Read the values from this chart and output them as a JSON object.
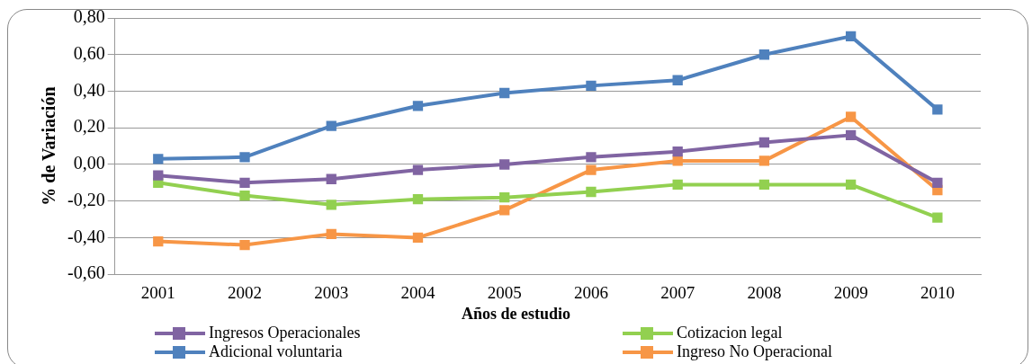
{
  "chart_data": {
    "type": "line",
    "xlabel": "Años de estudio",
    "ylabel": "% de Variación",
    "categories": [
      "2001",
      "2002",
      "2003",
      "2004",
      "2005",
      "2006",
      "2007",
      "2008",
      "2009",
      "2010"
    ],
    "series": [
      {
        "name": "Ingresos Operacionales",
        "color": "#8064a2",
        "values": [
          -0.06,
          -0.1,
          -0.08,
          -0.03,
          0.0,
          0.04,
          0.07,
          0.12,
          0.16,
          -0.1
        ]
      },
      {
        "name": "Cotizacion legal",
        "color": "#92d050",
        "values": [
          -0.1,
          -0.17,
          -0.22,
          -0.19,
          -0.18,
          -0.15,
          -0.11,
          -0.11,
          -0.11,
          -0.29
        ]
      },
      {
        "name": "Adicional voluntaria",
        "color": "#4f81bd",
        "values": [
          0.03,
          0.04,
          0.21,
          0.32,
          0.39,
          0.43,
          0.46,
          0.6,
          0.7,
          0.3
        ]
      },
      {
        "name": "Ingreso No Operacional",
        "color": "#f79646",
        "values": [
          -0.42,
          -0.44,
          -0.38,
          -0.4,
          -0.25,
          -0.03,
          0.02,
          0.02,
          0.26,
          -0.14
        ]
      }
    ],
    "ylim": [
      -0.6,
      0.8
    ],
    "yticks": [
      {
        "value": -0.6,
        "label": "-0,60"
      },
      {
        "value": -0.4,
        "label": "-0,40"
      },
      {
        "value": -0.2,
        "label": "-0,20"
      },
      {
        "value": 0,
        "label": "0,00"
      },
      {
        "value": 0.2,
        "label": "0,20"
      },
      {
        "value": 0.4,
        "label": "0,40"
      },
      {
        "value": 0.6,
        "label": "0,60"
      },
      {
        "value": 0.8,
        "label": "0,80"
      }
    ],
    "grid": "y",
    "legend": "bottom",
    "marker": "square",
    "line_style": "solid"
  }
}
